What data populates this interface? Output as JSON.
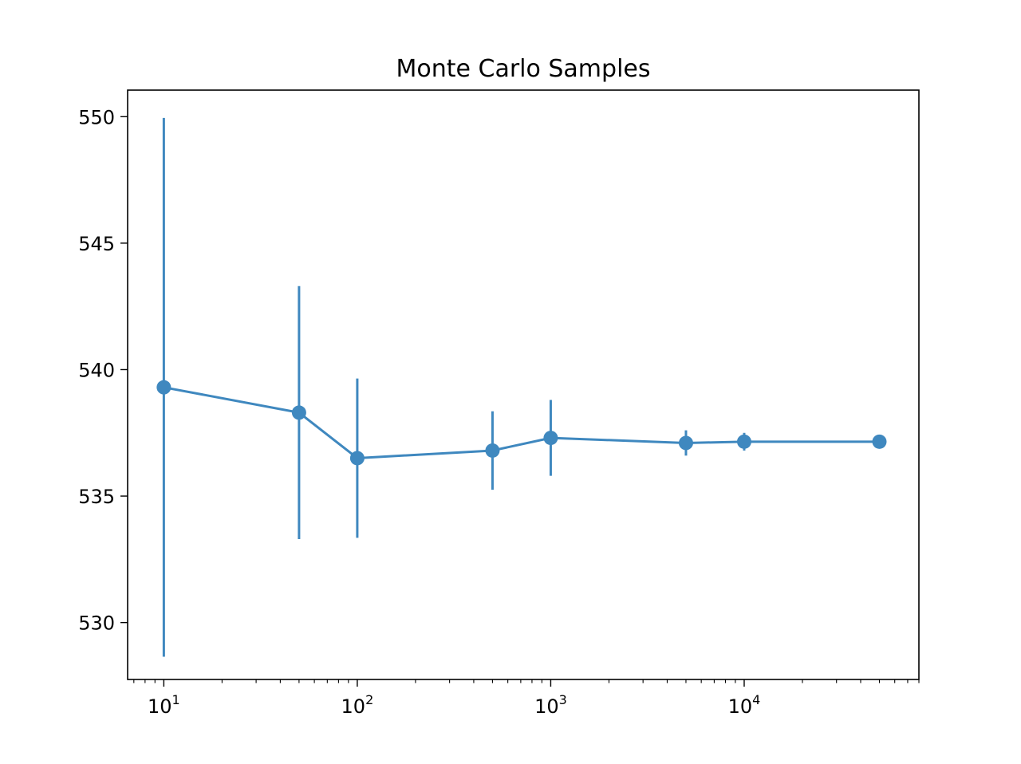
{
  "chart_data": {
    "type": "line",
    "title": "Monte Carlo Samples",
    "xlabel": "",
    "ylabel": "",
    "xscale": "log",
    "xlim": [
      6.5,
      80000
    ],
    "ylim": [
      527.75,
      551.05
    ],
    "grid": false,
    "legend": "none",
    "series": [
      {
        "x": [
          10,
          50,
          100,
          500,
          1000,
          5000,
          10000,
          50000
        ],
        "y": [
          539.3,
          538.3,
          536.5,
          536.8,
          537.3,
          537.1,
          537.15,
          537.15
        ],
        "yerr": [
          10.65,
          5.0,
          3.15,
          1.55,
          1.5,
          0.5,
          0.35,
          0.0
        ]
      }
    ],
    "x_ticks": [
      {
        "value": 10,
        "base": "10",
        "exp": "1"
      },
      {
        "value": 100,
        "base": "10",
        "exp": "2"
      },
      {
        "value": 1000,
        "base": "10",
        "exp": "3"
      },
      {
        "value": 10000,
        "base": "10",
        "exp": "4"
      }
    ],
    "y_ticks": [
      {
        "value": 530,
        "label": "530"
      },
      {
        "value": 535,
        "label": "535"
      },
      {
        "value": 540,
        "label": "540"
      },
      {
        "value": 545,
        "label": "545"
      },
      {
        "value": 550,
        "label": "550"
      }
    ],
    "colors": {
      "series": "#3f88bf",
      "axes": "#000000",
      "background": "#ffffff"
    }
  }
}
